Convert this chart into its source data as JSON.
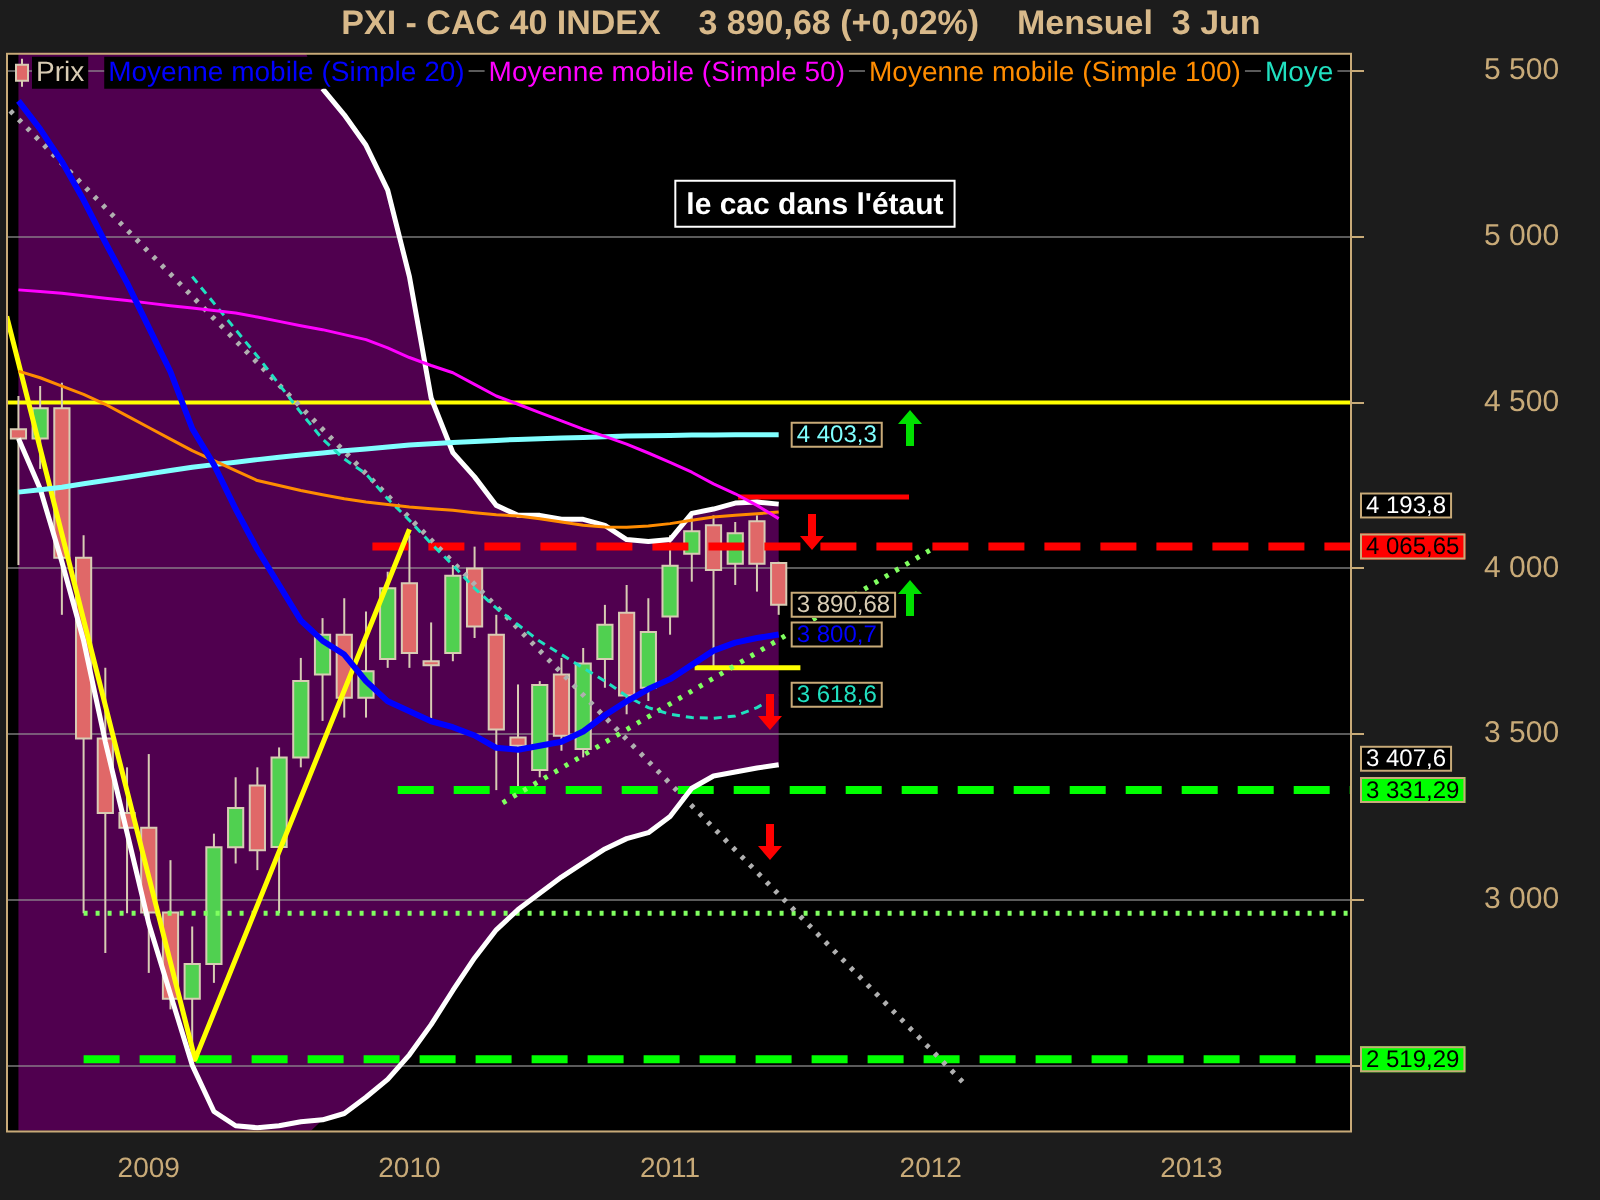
{
  "chart_data": {
    "type": "candlestick",
    "title": "PXI - CAC 40 INDEX    3 890,68 (+0,02%)    Mensuel  3 Jun",
    "annotations": [
      "le cac dans l'étaut",
      "4 193,8",
      "3 407,6"
    ],
    "xlim": [
      "2008-06-14",
      "2013-08-13"
    ],
    "xticks": [
      "2009",
      "2010",
      "2011",
      "2012",
      "2013"
    ],
    "ylim": [
      2305,
      5555
    ],
    "yticks": [
      {
        "value": 2500,
        "label": null
      },
      {
        "value": 3000,
        "label": "3 000"
      },
      {
        "value": 3500,
        "label": "3 500"
      },
      {
        "value": 4000,
        "label": "4 000"
      },
      {
        "value": 4500,
        "label": "4 500"
      },
      {
        "value": 5000,
        "label": "5 000"
      },
      {
        "value": 5500,
        "label": "5 500"
      }
    ],
    "grid": "y",
    "legend": "top left",
    "ref_lines": [
      {
        "axis": "y",
        "value": 4500,
        "color": "#ffff00"
      }
    ],
    "series": [
      {
        "name": "Prix",
        "color": "#d8ccb4",
        "x": [
          "2008-07",
          "2008-08",
          "2008-09",
          "2008-10",
          "2008-11",
          "2008-12",
          "2009-01",
          "2009-02",
          "2009-03",
          "2009-04",
          "2009-05",
          "2009-06",
          "2009-07",
          "2009-08",
          "2009-09",
          "2009-10",
          "2009-11",
          "2009-12",
          "2010-01",
          "2010-02",
          "2010-03",
          "2010-04",
          "2010-05",
          "2010-06",
          "2010-07",
          "2010-08",
          "2010-09",
          "2010-10",
          "2010-11",
          "2010-12",
          "2011-01",
          "2011-02",
          "2011-03",
          "2011-04",
          "2011-05",
          "2011-06"
        ],
        "ohlc": [
          [
            4420,
            4520,
            4010,
            4392
          ],
          [
            4392,
            4550,
            4300,
            4483
          ],
          [
            4483,
            4560,
            3860,
            4032
          ],
          [
            4032,
            4100,
            2960,
            3487
          ],
          [
            3487,
            3700,
            2840,
            3262
          ],
          [
            3262,
            3400,
            2960,
            3218
          ],
          [
            3218,
            3440,
            2780,
            2962
          ],
          [
            2962,
            3120,
            2670,
            2702
          ],
          [
            2702,
            2920,
            2519.29,
            2807
          ],
          [
            2807,
            3200,
            2750,
            3159
          ],
          [
            3159,
            3370,
            3110,
            3277
          ],
          [
            3345,
            3400,
            3090,
            3150
          ],
          [
            3160,
            3460,
            2960,
            3430
          ],
          [
            3430,
            3730,
            3400,
            3660
          ],
          [
            3680,
            3850,
            3540,
            3800
          ],
          [
            3800,
            3910,
            3550,
            3610
          ],
          [
            3610,
            3870,
            3550,
            3690
          ],
          [
            3727,
            3990,
            3700,
            3940
          ],
          [
            3955,
            4100,
            3700,
            3745
          ],
          [
            3720,
            3837,
            3548,
            3712
          ],
          [
            3745,
            4010,
            3720,
            3978
          ],
          [
            4000,
            4065.65,
            3790,
            3825
          ],
          [
            3800,
            3860,
            3331.29,
            3514
          ],
          [
            3490,
            3650,
            3340,
            3465
          ],
          [
            3392,
            3660,
            3370,
            3648
          ],
          [
            3680,
            3730,
            3450,
            3495
          ],
          [
            3455,
            3760,
            3430,
            3713
          ],
          [
            3727,
            3890,
            3640,
            3830
          ],
          [
            3866,
            3950,
            3560,
            3617
          ],
          [
            3640,
            3910,
            3600,
            3808
          ],
          [
            3855,
            4100,
            3800,
            4008
          ],
          [
            4044,
            4170,
            3960,
            4112
          ],
          [
            4130,
            4160,
            3700,
            3995
          ],
          [
            4014,
            4140,
            3950,
            4106
          ],
          [
            4142,
            4160,
            3930,
            4014
          ],
          [
            4016,
            4020,
            3860,
            3890.68
          ]
        ],
        "colors": [
          "#e06868",
          "#50d050",
          "#e06868",
          "#e06868",
          "#e06868",
          "#e06868",
          "#e06868",
          "#e06868",
          "#50d050",
          "#50d050",
          "#50d050",
          "#e06868",
          "#50d050",
          "#50d050",
          "#50d050",
          "#e06868",
          "#50d050",
          "#50d050",
          "#e06868",
          "#e06868",
          "#50d050",
          "#e06868",
          "#e06868",
          "#e06868",
          "#50d050",
          "#e06868",
          "#50d050",
          "#50d050",
          "#e06868",
          "#50d050",
          "#50d050",
          "#50d050",
          "#e06868",
          "#50d050",
          "#e06868",
          "#e06868"
        ],
        "value_labels": [
          null,
          null,
          null,
          null,
          null,
          null,
          null,
          null,
          null,
          null,
          null,
          null,
          null,
          null,
          null,
          null,
          null,
          null,
          null,
          null,
          null,
          null,
          null,
          null,
          null,
          null,
          null,
          null,
          null,
          null,
          null,
          null,
          null,
          null,
          null,
          "3 890,68"
        ]
      },
      {
        "type": "line",
        "name": "Moyenne mobile (Simple 20)",
        "color": "#0000ff",
        "x": [
          "2008-07",
          "2008-08",
          "2008-09",
          "2008-10",
          "2008-11",
          "2008-12",
          "2009-01",
          "2009-02",
          "2009-03",
          "2009-04",
          "2009-05",
          "2009-06",
          "2009-07",
          "2009-08",
          "2009-09",
          "2009-10",
          "2009-11",
          "2009-12",
          "2010-01",
          "2010-02",
          "2010-03",
          "2010-04",
          "2010-05",
          "2010-06",
          "2010-07",
          "2010-08",
          "2010-09",
          "2010-10",
          "2010-11",
          "2010-12",
          "2011-01",
          "2011-02",
          "2011-03",
          "2011-04",
          "2011-05",
          "2011-06"
        ],
        "values": [
          5410,
          5325,
          5227,
          5111,
          4983,
          4861,
          4727,
          4593,
          4422,
          4313,
          4179,
          4057,
          3950,
          3843,
          3782,
          3740,
          3660,
          3599,
          3569,
          3539,
          3521,
          3496,
          3459,
          3453,
          3465,
          3477,
          3508,
          3557,
          3599,
          3636,
          3666,
          3709,
          3752,
          3776,
          3790,
          3800.7
        ],
        "upper": [
          null,
          null,
          null,
          null,
          null,
          null,
          null,
          null,
          null,
          null,
          null,
          null,
          null,
          null,
          5447,
          5368,
          5276,
          5141,
          4880,
          4514,
          4349,
          4276,
          4190,
          4160,
          4160,
          4148,
          4148,
          4130,
          4087,
          4081,
          4087,
          4166,
          4179,
          4197,
          4200,
          4193.8
        ],
        "lower": [
          null,
          null,
          null,
          null,
          null,
          null,
          null,
          null,
          null,
          null,
          null,
          null,
          null,
          null,
          2337,
          2356,
          2405,
          2459,
          2533,
          2624,
          2727,
          2825,
          2910,
          2971,
          3020,
          3069,
          3112,
          3154,
          3185,
          3203,
          3252,
          3337,
          3374,
          3386,
          3398,
          3407.6
        ],
        "value_labels": [
          null,
          null,
          null,
          null,
          null,
          null,
          null,
          null,
          null,
          null,
          null,
          null,
          null,
          null,
          null,
          null,
          null,
          null,
          null,
          null,
          null,
          null,
          null,
          null,
          null,
          null,
          null,
          null,
          null,
          null,
          null,
          null,
          null,
          null,
          null,
          "3 800,7"
        ]
      },
      {
        "type": "line",
        "name": "Moyenne mobile (Simple 50)",
        "color": "#ff00ff",
        "x": [
          "2008-07",
          "2008-08",
          "2008-09",
          "2008-10",
          "2008-11",
          "2008-12",
          "2009-01",
          "2009-02",
          "2009-03",
          "2009-04",
          "2009-05",
          "2009-06",
          "2009-07",
          "2009-08",
          "2009-09",
          "2009-10",
          "2009-11",
          "2009-12",
          "2010-01",
          "2010-02",
          "2010-03",
          "2010-04",
          "2010-05",
          "2010-06",
          "2010-07",
          "2010-08",
          "2010-09",
          "2010-10",
          "2010-11",
          "2010-12",
          "2011-01",
          "2011-02",
          "2011-03",
          "2011-04",
          "2011-05",
          "2011-06"
        ],
        "values": [
          4840,
          4835,
          4830,
          4822,
          4815,
          4808,
          4800,
          4792,
          4785,
          4778,
          4770,
          4758,
          4745,
          4732,
          4720,
          4705,
          4690,
          4665,
          4636,
          4612,
          4590,
          4555,
          4520,
          4495,
          4470,
          4445,
          4420,
          4398,
          4375,
          4348,
          4320,
          4290,
          4255,
          4225,
          4190,
          4150
        ]
      },
      {
        "type": "line",
        "name": "Moyenne mobile (Simple 100)",
        "color": "#ff8c00",
        "x": [
          "2008-07",
          "2008-08",
          "2008-09",
          "2008-10",
          "2008-11",
          "2008-12",
          "2009-01",
          "2009-02",
          "2009-03",
          "2009-04",
          "2009-05",
          "2009-06",
          "2009-07",
          "2009-08",
          "2009-09",
          "2009-10",
          "2009-11",
          "2009-12",
          "2010-01",
          "2010-02",
          "2010-03",
          "2010-04",
          "2010-05",
          "2010-06",
          "2010-07",
          "2010-08",
          "2010-09",
          "2010-10",
          "2010-11",
          "2010-12",
          "2011-01",
          "2011-02",
          "2011-03",
          "2011-04",
          "2011-05",
          "2011-06"
        ],
        "values": [
          4595,
          4575,
          4550,
          4525,
          4495,
          4460,
          4425,
          4390,
          4355,
          4325,
          4295,
          4265,
          4250,
          4235,
          4222,
          4210,
          4200,
          4193,
          4185,
          4180,
          4175,
          4168,
          4162,
          4158,
          4150,
          4140,
          4130,
          4125,
          4124,
          4128,
          4135,
          4145,
          4155,
          4160,
          4165,
          4170
        ]
      },
      {
        "type": "line",
        "name": "Moye",
        "color": "#20e0c0",
        "line_style": "dashed",
        "x": [
          "2009-03",
          "2009-04",
          "2009-05",
          "2009-06",
          "2009-07",
          "2009-08",
          "2009-09",
          "2009-10",
          "2009-11",
          "2009-12",
          "2010-01",
          "2010-02",
          "2010-03",
          "2010-04",
          "2010-05",
          "2010-06",
          "2010-07",
          "2010-08",
          "2010-09",
          "2010-10",
          "2010-11",
          "2010-12",
          "2011-01",
          "2011-02",
          "2011-03",
          "2011-04",
          "2011-05",
          "2011-06"
        ],
        "values": [
          4880,
          4800,
          4720,
          4640,
          4555,
          4470,
          4390,
          4330,
          4285,
          4210,
          4145,
          4075,
          4010,
          3940,
          3880,
          3830,
          3780,
          3740,
          3700,
          3660,
          3615,
          3580,
          3560,
          3550,
          3548,
          3555,
          3580,
          3618.6
        ],
        "value_labels": [
          null,
          null,
          null,
          null,
          null,
          null,
          null,
          null,
          null,
          null,
          null,
          null,
          null,
          null,
          null,
          null,
          null,
          null,
          null,
          null,
          null,
          null,
          null,
          null,
          null,
          null,
          null,
          "3 618,6"
        ]
      },
      {
        "type": "line",
        "color": "#80ffff",
        "x": [
          "2008-07",
          "2008-08",
          "2008-09",
          "2008-10",
          "2008-11",
          "2008-12",
          "2009-01",
          "2009-02",
          "2009-03",
          "2009-04",
          "2009-05",
          "2009-06",
          "2009-07",
          "2009-08",
          "2009-09",
          "2009-10",
          "2009-11",
          "2009-12",
          "2010-01",
          "2010-02",
          "2010-03",
          "2010-04",
          "2010-05",
          "2010-06",
          "2010-07",
          "2010-08",
          "2010-09",
          "2010-10",
          "2010-11",
          "2010-12",
          "2011-01",
          "2011-02",
          "2011-03",
          "2011-04",
          "2011-05",
          "2011-06"
        ],
        "values": [
          4230,
          4237,
          4245,
          4255,
          4265,
          4275,
          4285,
          4295,
          4305,
          4313,
          4320,
          4328,
          4335,
          4342,
          4348,
          4355,
          4360,
          4366,
          4372,
          4376,
          4380,
          4383,
          4386,
          4389,
          4391,
          4393,
          4395,
          4397,
          4399,
          4400,
          4401,
          4402,
          4402,
          4403,
          4403,
          4403.3
        ],
        "value_labels": [
          null,
          null,
          null,
          null,
          null,
          null,
          null,
          null,
          null,
          null,
          null,
          null,
          null,
          null,
          null,
          null,
          null,
          null,
          null,
          null,
          null,
          null,
          null,
          null,
          null,
          null,
          null,
          null,
          null,
          null,
          null,
          null,
          null,
          null,
          null,
          "4 403,3"
        ]
      },
      {
        "type": "line",
        "color": "#ffffff",
        "x": [
          "2009-09",
          "2009-10",
          "2009-11",
          "2009-12",
          "2010-01",
          "2010-02",
          "2010-03",
          "2010-04",
          "2010-05",
          "2010-06",
          "2010-07",
          "2010-08",
          "2010-09",
          "2010-10",
          "2010-11",
          "2010-12",
          "2011-01",
          "2011-02",
          "2011-03",
          "2011-04",
          "2011-05",
          "2011-06"
        ],
        "values": [
          5447,
          5368,
          5276,
          5141,
          4880,
          4514,
          4349,
          4276,
          4190,
          4160,
          4160,
          4148,
          4148,
          4130,
          4087,
          4081,
          4087,
          4166,
          4179,
          4197,
          4200,
          4193.8
        ]
      },
      {
        "type": "line",
        "color": "#ffffff",
        "x": [
          "2008-07",
          "2008-08",
          "2008-09",
          "2008-10",
          "2008-11",
          "2008-12",
          "2009-01",
          "2009-02",
          "2009-03",
          "2009-04",
          "2009-05",
          "2009-06",
          "2009-07",
          "2009-08",
          "2009-09",
          "2009-10",
          "2009-11",
          "2009-12",
          "2010-01",
          "2010-02",
          "2010-03",
          "2010-04",
          "2010-05",
          "2010-06",
          "2010-07",
          "2010-08",
          "2010-09",
          "2010-10",
          "2010-11",
          "2010-12",
          "2011-01",
          "2011-02",
          "2011-03",
          "2011-04",
          "2011-05",
          "2011-06"
        ],
        "values": [
          4392,
          4240,
          4020,
          3782,
          3477,
          3203,
          2929,
          2715,
          2502,
          2362,
          2319,
          2313,
          2319,
          2331,
          2337,
          2356,
          2405,
          2459,
          2533,
          2624,
          2727,
          2825,
          2910,
          2971,
          3020,
          3069,
          3112,
          3154,
          3185,
          3203,
          3252,
          3337,
          3374,
          3386,
          3398,
          3407.6
        ]
      },
      {
        "type": "line",
        "color": "#ffff00",
        "x": [
          "2008-06-15",
          "2009-03-05",
          "2010-01-01"
        ],
        "values": [
          4760,
          2519.29,
          4118
        ]
      },
      {
        "type": "line",
        "color": "#b0b0b0",
        "line_style": "dotted",
        "x": [
          "2008-06-20",
          "2012-02-20"
        ],
        "values": [
          5380,
          2441
        ]
      },
      {
        "type": "line",
        "color": "#80ff60",
        "line_style": "dotted",
        "x": [
          "2010-05-10",
          "2012-01-01"
        ],
        "values": [
          3293,
          4056
        ]
      },
      {
        "type": "line",
        "color": "#80ff60",
        "line_style": "dotted",
        "x": [
          "2008-10-01",
          "2013-08-13"
        ],
        "values": [
          2960,
          2960
        ]
      },
      {
        "type": "line",
        "color": "#ff0000",
        "line_style": "dashed",
        "x": [
          "2009-11-10",
          "2013-08-13"
        ],
        "values": [
          4065.65,
          4065.65
        ],
        "value_labels": [
          null,
          "4 065,65"
        ]
      },
      {
        "type": "line",
        "color": "#00ff00",
        "line_style": "dashed",
        "x": [
          "2009-12-15",
          "2013-08-13"
        ],
        "values": [
          3331.29,
          3331.29
        ],
        "value_labels": [
          null,
          "3 331,29"
        ]
      },
      {
        "type": "line",
        "color": "#00ff00",
        "line_style": "dashed",
        "x": [
          "2008-10-01",
          "2013-08-13"
        ],
        "values": [
          2519.29,
          2519.29
        ],
        "value_labels": [
          null,
          "2 519,29"
        ]
      },
      {
        "type": "line",
        "color": "#ff0000",
        "x": [
          "2011-04-05",
          "2011-12-01"
        ],
        "values": [
          4215,
          4215
        ]
      },
      {
        "type": "line",
        "color": "#ffff00",
        "x": [
          "2011-02-05",
          "2011-07-01"
        ],
        "values": [
          3700,
          3700
        ]
      }
    ]
  }
}
